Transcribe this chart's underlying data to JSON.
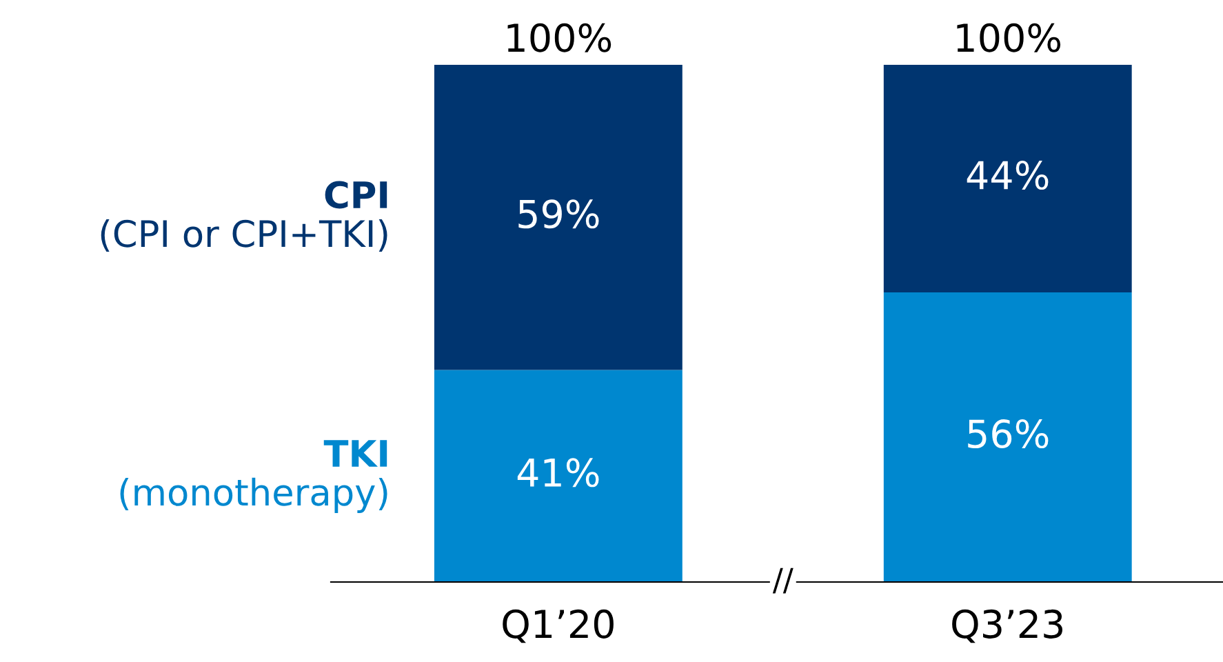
{
  "chart_data": {
    "type": "bar",
    "stacked": true,
    "categories": [
      "Q1’20",
      "Q3’23"
    ],
    "series": [
      {
        "name": "TKI\n(monotherapy)",
        "color": "#0088cf",
        "values": [
          41,
          56
        ],
        "value_labels": [
          "41%",
          "56%"
        ]
      },
      {
        "name": "CPI\n(CPI or CPI+TKI)",
        "color": "#003570",
        "values": [
          59,
          44
        ],
        "value_labels": [
          "59%",
          "44%"
        ]
      }
    ],
    "totals": [
      "100%",
      "100%"
    ],
    "annotations": [
      "//"
    ],
    "legend": false,
    "grid": false
  }
}
